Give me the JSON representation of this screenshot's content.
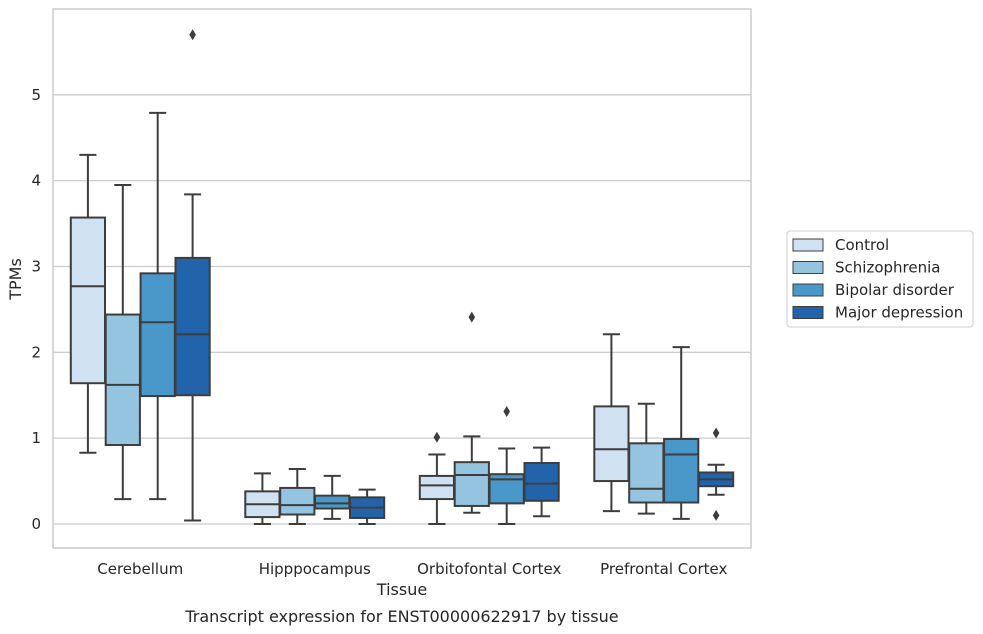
{
  "chart_data": {
    "type": "box",
    "title": "",
    "caption": "Transcript expression for ENST00000622917 by tissue",
    "xlabel": "Tissue",
    "ylabel": "TPMs",
    "ylim": [
      -0.28,
      6.0
    ],
    "yticks": [
      0,
      1,
      2,
      3,
      4,
      5
    ],
    "grid": "horizontal",
    "legend_position": "right",
    "categories": [
      "Cerebellum",
      "Hipppocampus",
      "Orbitofontal Cortex",
      "Prefrontal Cortex"
    ],
    "series": [
      {
        "name": "Control",
        "color": "#d0e1f2",
        "boxes": [
          {
            "whislo": 0.83,
            "q1": 1.64,
            "med": 2.77,
            "q3": 3.57,
            "whishi": 4.3,
            "fliers": []
          },
          {
            "whislo": 0.0,
            "q1": 0.08,
            "med": 0.23,
            "q3": 0.38,
            "whishi": 0.59,
            "fliers": []
          },
          {
            "whislo": 0.0,
            "q1": 0.29,
            "med": 0.45,
            "q3": 0.56,
            "whishi": 0.81,
            "fliers": [
              1.01
            ]
          },
          {
            "whislo": 0.15,
            "q1": 0.5,
            "med": 0.87,
            "q3": 1.37,
            "whishi": 2.21,
            "fliers": []
          }
        ]
      },
      {
        "name": "Schizophrenia",
        "color": "#94c4df",
        "boxes": [
          {
            "whislo": 0.29,
            "q1": 0.92,
            "med": 1.62,
            "q3": 2.44,
            "whishi": 3.95,
            "fliers": []
          },
          {
            "whislo": 0.0,
            "q1": 0.11,
            "med": 0.22,
            "q3": 0.42,
            "whishi": 0.64,
            "fliers": []
          },
          {
            "whislo": 0.13,
            "q1": 0.21,
            "med": 0.57,
            "q3": 0.72,
            "whishi": 1.02,
            "fliers": [
              2.41
            ]
          },
          {
            "whislo": 0.12,
            "q1": 0.25,
            "med": 0.41,
            "q3": 0.94,
            "whishi": 1.4,
            "fliers": []
          }
        ]
      },
      {
        "name": "Bipolar disorder",
        "color": "#4a98c9",
        "boxes": [
          {
            "whislo": 0.29,
            "q1": 1.49,
            "med": 2.35,
            "q3": 2.92,
            "whishi": 4.79,
            "fliers": []
          },
          {
            "whislo": 0.06,
            "q1": 0.18,
            "med": 0.24,
            "q3": 0.33,
            "whishi": 0.56,
            "fliers": []
          },
          {
            "whislo": 0.0,
            "q1": 0.24,
            "med": 0.52,
            "q3": 0.58,
            "whishi": 0.88,
            "fliers": [
              1.31
            ]
          },
          {
            "whislo": 0.06,
            "q1": 0.25,
            "med": 0.81,
            "q3": 0.99,
            "whishi": 2.06,
            "fliers": []
          }
        ]
      },
      {
        "name": "Major depression",
        "color": "#2164ab",
        "boxes": [
          {
            "whislo": 0.04,
            "q1": 1.5,
            "med": 2.21,
            "q3": 3.1,
            "whishi": 3.84,
            "fliers": [
              5.7
            ]
          },
          {
            "whislo": 0.0,
            "q1": 0.07,
            "med": 0.19,
            "q3": 0.31,
            "whishi": 0.4,
            "fliers": []
          },
          {
            "whislo": 0.09,
            "q1": 0.27,
            "med": 0.47,
            "q3": 0.71,
            "whishi": 0.89,
            "fliers": []
          },
          {
            "whislo": 0.34,
            "q1": 0.44,
            "med": 0.52,
            "q3": 0.6,
            "whishi": 0.69,
            "fliers": [
              1.06,
              0.1
            ]
          }
        ]
      }
    ]
  }
}
